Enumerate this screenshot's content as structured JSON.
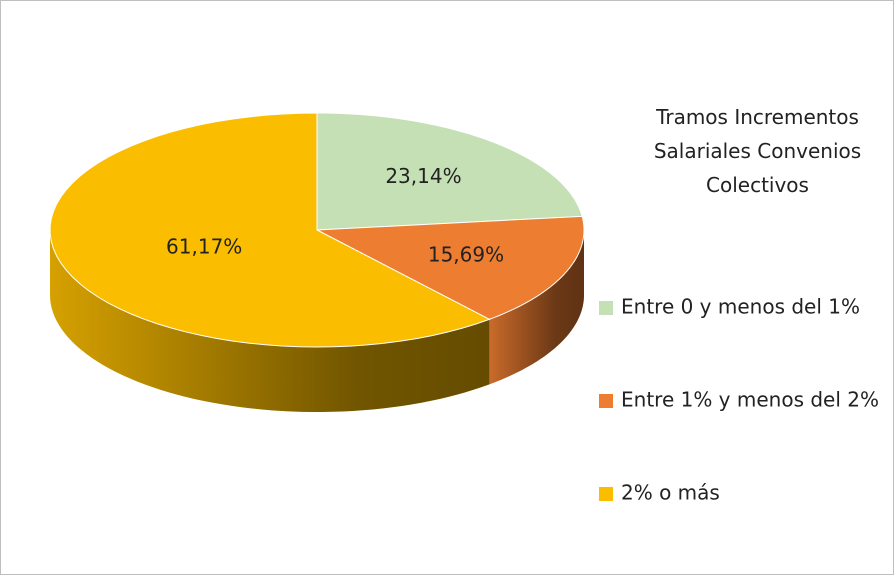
{
  "chart_data": {
    "type": "pie",
    "title": "Tramos Incrementos Salariales Convenios Colectivos",
    "categories": [
      "Entre 0 y menos del 1%",
      "Entre 1% y menos del 2%",
      "2% o más"
    ],
    "values": [
      23.14,
      15.69,
      61.17
    ],
    "value_labels": [
      "23,14%",
      "15,69%",
      "61,17%"
    ],
    "colors": [
      "#c5e0b4",
      "#ed7d31",
      "#fbbd00"
    ]
  }
}
